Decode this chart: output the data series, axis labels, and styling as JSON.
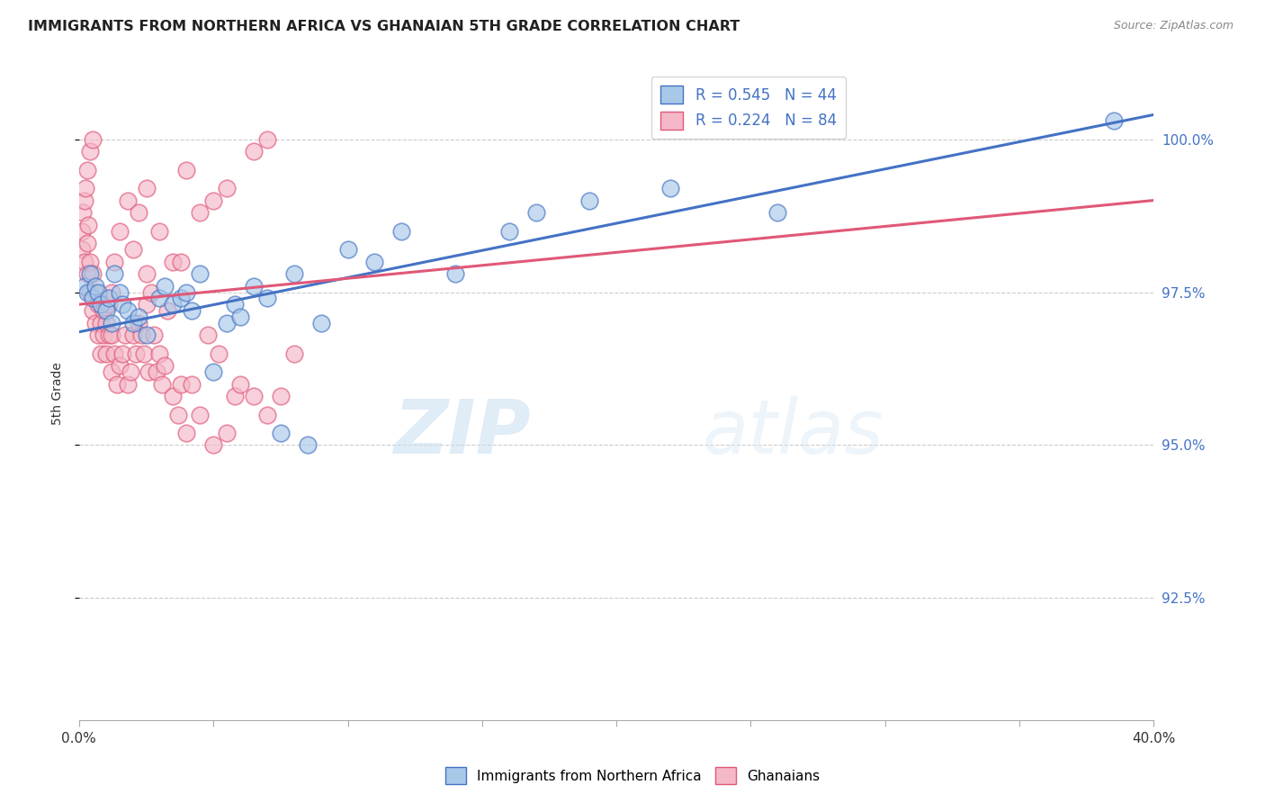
{
  "title": "IMMIGRANTS FROM NORTHERN AFRICA VS GHANAIAN 5TH GRADE CORRELATION CHART",
  "source": "Source: ZipAtlas.com",
  "ylabel": "5th Grade",
  "y_ticks": [
    92.5,
    95.0,
    97.5,
    100.0
  ],
  "y_tick_labels": [
    "92.5%",
    "95.0%",
    "97.5%",
    "100.0%"
  ],
  "x_min": 0.0,
  "x_max": 40.0,
  "y_min": 90.5,
  "y_max": 101.2,
  "legend_blue_label": "R = 0.545   N = 44",
  "legend_pink_label": "R = 0.224   N = 84",
  "legend_bottom_blue": "Immigrants from Northern Africa",
  "legend_bottom_pink": "Ghanaians",
  "blue_color": "#a8c8e8",
  "pink_color": "#f4b8c8",
  "blue_line_color": "#4472c4",
  "pink_line_color": "#e05878",
  "blue_scatter_x": [
    0.2,
    0.3,
    0.4,
    0.5,
    0.6,
    0.7,
    0.8,
    1.0,
    1.1,
    1.2,
    1.3,
    1.5,
    1.6,
    1.8,
    2.0,
    2.2,
    2.5,
    3.0,
    3.2,
    3.5,
    3.8,
    4.0,
    4.2,
    4.5,
    5.0,
    5.5,
    5.8,
    6.0,
    6.5,
    7.0,
    7.5,
    8.0,
    8.5,
    9.0,
    10.0,
    11.0,
    12.0,
    14.0,
    16.0,
    17.0,
    19.0,
    22.0,
    26.0,
    38.5
  ],
  "blue_scatter_y": [
    97.6,
    97.5,
    97.8,
    97.4,
    97.6,
    97.5,
    97.3,
    97.2,
    97.4,
    97.0,
    97.8,
    97.5,
    97.3,
    97.2,
    97.0,
    97.1,
    96.8,
    97.4,
    97.6,
    97.3,
    97.4,
    97.5,
    97.2,
    97.8,
    96.2,
    97.0,
    97.3,
    97.1,
    97.6,
    97.4,
    95.2,
    97.8,
    95.0,
    97.0,
    98.2,
    98.0,
    98.5,
    97.8,
    98.5,
    98.8,
    99.0,
    99.2,
    98.8,
    100.3
  ],
  "pink_scatter_x": [
    0.1,
    0.1,
    0.15,
    0.2,
    0.2,
    0.25,
    0.3,
    0.3,
    0.35,
    0.4,
    0.4,
    0.5,
    0.5,
    0.6,
    0.6,
    0.7,
    0.7,
    0.8,
    0.8,
    0.9,
    0.9,
    1.0,
    1.0,
    1.1,
    1.1,
    1.2,
    1.2,
    1.3,
    1.4,
    1.5,
    1.6,
    1.7,
    1.8,
    1.9,
    2.0,
    2.1,
    2.2,
    2.3,
    2.4,
    2.5,
    2.6,
    2.7,
    2.8,
    2.9,
    3.0,
    3.1,
    3.2,
    3.3,
    3.5,
    3.7,
    3.8,
    4.0,
    4.2,
    4.5,
    4.8,
    5.0,
    5.2,
    5.5,
    5.8,
    6.0,
    6.5,
    7.0,
    7.5,
    8.0,
    1.5,
    1.8,
    2.0,
    2.2,
    2.5,
    3.0,
    3.5,
    4.0,
    4.5,
    5.0,
    5.5,
    6.5,
    7.0,
    2.5,
    1.2,
    3.8,
    0.3,
    0.4,
    0.5,
    1.3
  ],
  "pink_scatter_y": [
    98.2,
    98.5,
    98.8,
    98.0,
    99.0,
    99.2,
    97.8,
    98.3,
    98.6,
    97.5,
    98.0,
    97.2,
    97.8,
    97.0,
    97.5,
    96.8,
    97.3,
    96.5,
    97.0,
    96.8,
    97.2,
    96.5,
    97.0,
    96.8,
    97.3,
    96.2,
    96.8,
    96.5,
    96.0,
    96.3,
    96.5,
    96.8,
    96.0,
    96.2,
    96.8,
    96.5,
    97.0,
    96.8,
    96.5,
    97.3,
    96.2,
    97.5,
    96.8,
    96.2,
    96.5,
    96.0,
    96.3,
    97.2,
    95.8,
    95.5,
    96.0,
    95.2,
    96.0,
    95.5,
    96.8,
    95.0,
    96.5,
    95.2,
    95.8,
    96.0,
    95.8,
    95.5,
    95.8,
    96.5,
    98.5,
    99.0,
    98.2,
    98.8,
    99.2,
    98.5,
    98.0,
    99.5,
    98.8,
    99.0,
    99.2,
    99.8,
    100.0,
    97.8,
    97.5,
    98.0,
    99.5,
    99.8,
    100.0,
    98.0
  ],
  "blue_trend_x0": 0.0,
  "blue_trend_y0": 96.85,
  "blue_trend_x1": 40.0,
  "blue_trend_y1": 100.4,
  "pink_trend_x0": 0.0,
  "pink_trend_y0": 97.3,
  "pink_trend_x1": 40.0,
  "pink_trend_y1": 99.0
}
